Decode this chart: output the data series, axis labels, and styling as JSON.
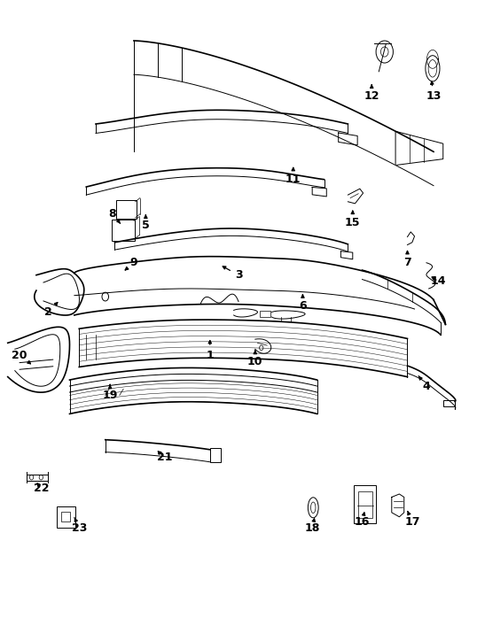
{
  "bg_color": "#ffffff",
  "line_color": "#000000",
  "fig_width": 5.38,
  "fig_height": 6.98,
  "dpi": 100,
  "label_fontsize": 9,
  "label_positions": {
    "1": [
      0.44,
      0.425,
      0.44,
      0.455
    ],
    "2": [
      0.1,
      0.495,
      0.125,
      0.515
    ],
    "3": [
      0.5,
      0.555,
      0.46,
      0.572
    ],
    "4": [
      0.895,
      0.375,
      0.875,
      0.395
    ],
    "5": [
      0.305,
      0.635,
      0.305,
      0.658
    ],
    "6": [
      0.635,
      0.505,
      0.635,
      0.525
    ],
    "7": [
      0.855,
      0.575,
      0.855,
      0.6
    ],
    "8": [
      0.235,
      0.655,
      0.252,
      0.638
    ],
    "9": [
      0.28,
      0.575,
      0.26,
      0.562
    ],
    "10": [
      0.535,
      0.415,
      0.535,
      0.438
    ],
    "11": [
      0.615,
      0.71,
      0.615,
      0.735
    ],
    "12": [
      0.78,
      0.845,
      0.78,
      0.865
    ],
    "13": [
      0.91,
      0.845,
      0.905,
      0.875
    ],
    "14": [
      0.92,
      0.545,
      0.9,
      0.555
    ],
    "15": [
      0.74,
      0.64,
      0.74,
      0.665
    ],
    "16": [
      0.76,
      0.155,
      0.765,
      0.172
    ],
    "17": [
      0.865,
      0.155,
      0.855,
      0.173
    ],
    "18": [
      0.655,
      0.145,
      0.66,
      0.162
    ],
    "19": [
      0.23,
      0.36,
      0.23,
      0.378
    ],
    "20": [
      0.04,
      0.425,
      0.065,
      0.41
    ],
    "21": [
      0.345,
      0.26,
      0.325,
      0.273
    ],
    "22": [
      0.085,
      0.21,
      0.072,
      0.222
    ],
    "23": [
      0.165,
      0.145,
      0.155,
      0.162
    ]
  }
}
